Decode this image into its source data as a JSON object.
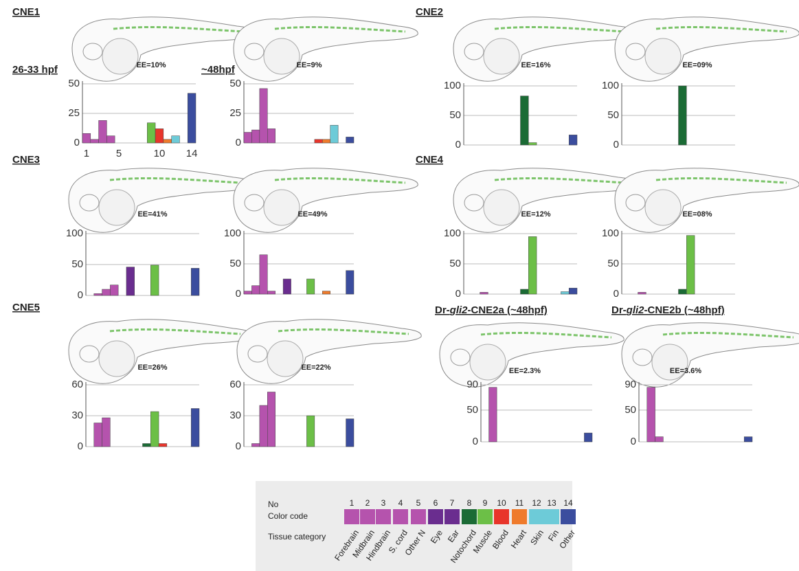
{
  "panels": [
    {
      "title_parts": [
        "CNE1"
      ]
    },
    {
      "title_parts": [
        "CNE2"
      ]
    },
    {
      "title_parts": [
        "CNE3"
      ]
    },
    {
      "title_parts": [
        "CNE4"
      ]
    },
    {
      "title_parts": [
        "CNE5"
      ]
    },
    {
      "title_parts": [
        "Dr-",
        "gli2",
        "-CNE2a (~48hpf)"
      ]
    },
    {
      "title_parts": [
        "Dr-",
        "gli2",
        "-CNE2b (~48hpf)"
      ]
    }
  ],
  "stage_labels": [
    "26-33 hpf",
    "~48hpf"
  ],
  "legend": {
    "row_labels": [
      "No",
      "Color code",
      "Tissue category"
    ],
    "numbers": [
      1,
      2,
      3,
      4,
      5,
      6,
      7,
      8,
      9,
      10,
      11,
      12,
      13,
      14
    ],
    "colors": [
      "#b553ad",
      "#b553ad",
      "#b553ad",
      "#b553ad",
      "#b553ad",
      "#6a2d8f",
      "#6a2d8f",
      "#1b6b35",
      "#6cbf47",
      "#e8352b",
      "#ef7b2c",
      "#6dcbd8",
      "#6dcbd8",
      "#3b4d9e"
    ],
    "tissues": [
      "Forebrain",
      "Midbrain",
      "Hindbrain",
      "S. cord",
      "Other N",
      "Eye",
      "Ear",
      "Notochord",
      "Muscle",
      "Blood",
      "Heart",
      "Skin",
      "Fin",
      "Other"
    ]
  },
  "chart_data": [
    {
      "type": "bar",
      "annotation": "EE=10%",
      "ylim": [
        0,
        50
      ],
      "yticks": [
        0,
        25,
        50
      ],
      "xticks": [
        1,
        5,
        10,
        14
      ],
      "grid": true,
      "values": [
        8,
        3,
        19,
        6,
        0,
        0,
        0,
        0,
        17,
        12,
        3,
        6,
        0,
        42
      ]
    },
    {
      "type": "bar",
      "annotation": "EE=9%",
      "ylim": [
        0,
        50
      ],
      "yticks": [
        0,
        25,
        50
      ],
      "grid": true,
      "values": [
        9,
        11,
        46,
        12,
        0,
        0,
        0,
        0,
        0,
        3,
        3,
        15,
        0,
        5
      ]
    },
    {
      "type": "bar",
      "annotation": "EE=16%",
      "ylim": [
        0,
        100
      ],
      "yticks": [
        0,
        50,
        100
      ],
      "grid": true,
      "values": [
        0,
        0,
        0,
        0,
        0,
        0,
        0,
        83,
        4,
        0,
        0,
        0,
        0,
        17
      ]
    },
    {
      "type": "bar",
      "annotation": "EE=09%",
      "ylim": [
        0,
        100
      ],
      "yticks": [
        0,
        50,
        100
      ],
      "grid": true,
      "values": [
        0,
        0,
        0,
        0,
        0,
        0,
        0,
        100,
        0,
        0,
        0,
        0,
        0,
        0
      ]
    },
    {
      "type": "bar",
      "annotation": "EE=41%",
      "ylim": [
        0,
        100
      ],
      "yticks": [
        0,
        50,
        100
      ],
      "grid": true,
      "values": [
        0,
        3,
        10,
        17,
        0,
        46,
        0,
        0,
        49,
        0,
        0,
        0,
        0,
        44
      ]
    },
    {
      "type": "bar",
      "annotation": "EE=49%",
      "ylim": [
        0,
        100
      ],
      "yticks": [
        0,
        50,
        100
      ],
      "grid": true,
      "values": [
        5,
        14,
        65,
        5,
        0,
        25,
        0,
        0,
        25,
        0,
        5,
        0,
        0,
        39
      ]
    },
    {
      "type": "bar",
      "annotation": "EE=12%",
      "ylim": [
        0,
        100
      ],
      "yticks": [
        0,
        50,
        100
      ],
      "grid": true,
      "values": [
        0,
        0,
        3,
        0,
        0,
        0,
        0,
        8,
        95,
        0,
        0,
        0,
        4,
        10
      ]
    },
    {
      "type": "bar",
      "annotation": "EE=08%",
      "ylim": [
        0,
        100
      ],
      "yticks": [
        0,
        50,
        100
      ],
      "grid": true,
      "values": [
        0,
        0,
        3,
        0,
        0,
        0,
        0,
        8,
        97,
        0,
        0,
        0,
        0,
        0
      ]
    },
    {
      "type": "bar",
      "annotation": "EE=26%",
      "ylim": [
        0,
        60
      ],
      "yticks": [
        0,
        30,
        60
      ],
      "grid": true,
      "values": [
        0,
        23,
        28,
        0,
        0,
        0,
        0,
        3,
        34,
        3,
        0,
        0,
        0,
        37
      ]
    },
    {
      "type": "bar",
      "annotation": "EE=22%",
      "ylim": [
        0,
        60
      ],
      "yticks": [
        0,
        30,
        60
      ],
      "grid": true,
      "values": [
        0,
        3,
        40,
        53,
        0,
        0,
        0,
        0,
        30,
        0,
        0,
        0,
        0,
        27
      ]
    },
    {
      "type": "bar",
      "annotation": "EE=2.3%",
      "ylim": [
        0,
        90
      ],
      "yticks": [
        0,
        50,
        90
      ],
      "grid": true,
      "values": [
        0,
        86,
        0,
        0,
        0,
        0,
        0,
        0,
        0,
        0,
        0,
        0,
        0,
        14
      ]
    },
    {
      "type": "bar",
      "annotation": "EE=3.6%",
      "ylim": [
        0,
        90
      ],
      "yticks": [
        0,
        50,
        90
      ],
      "grid": true,
      "values": [
        0,
        86,
        8,
        0,
        0,
        0,
        0,
        0,
        0,
        0,
        0,
        0,
        0,
        8
      ]
    }
  ]
}
